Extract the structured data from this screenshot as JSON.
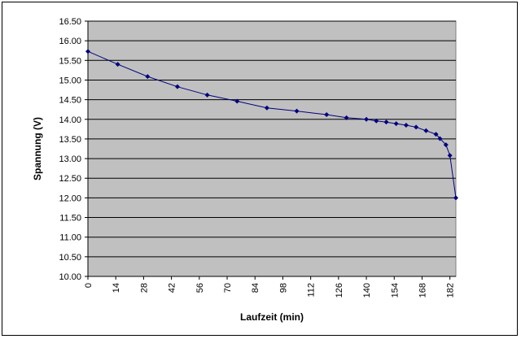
{
  "chart_data": {
    "type": "line",
    "title": "",
    "xlabel": "Laufzeit (min)",
    "ylabel": "Spannung (V)",
    "xlim": [
      0,
      185
    ],
    "ylim": [
      10.0,
      16.5
    ],
    "x_ticks": [
      "0",
      "14",
      "28",
      "42",
      "56",
      "70",
      "84",
      "98",
      "112",
      "126",
      "140",
      "154",
      "168",
      "182"
    ],
    "y_ticks": [
      "10.00",
      "10.50",
      "11.00",
      "11.50",
      "12.00",
      "12.50",
      "13.00",
      "13.50",
      "14.00",
      "14.50",
      "15.00",
      "15.50",
      "16.00",
      "16.50"
    ],
    "grid": true,
    "legend": "none",
    "series": [
      {
        "x": [
          0,
          15,
          30,
          45,
          60,
          75,
          90,
          105,
          120,
          130,
          140,
          145,
          150,
          155,
          160,
          165,
          170,
          175,
          177,
          180,
          182,
          185
        ],
        "y": [
          15.73,
          15.4,
          15.09,
          14.83,
          14.62,
          14.46,
          14.29,
          14.21,
          14.12,
          14.04,
          14.0,
          13.96,
          13.93,
          13.89,
          13.85,
          13.8,
          13.71,
          13.62,
          13.51,
          13.35,
          13.08,
          12.0
        ]
      }
    ],
    "colors": {
      "plot_background": "#c0c0c0",
      "line": "#000080",
      "grid": "#000000"
    }
  }
}
